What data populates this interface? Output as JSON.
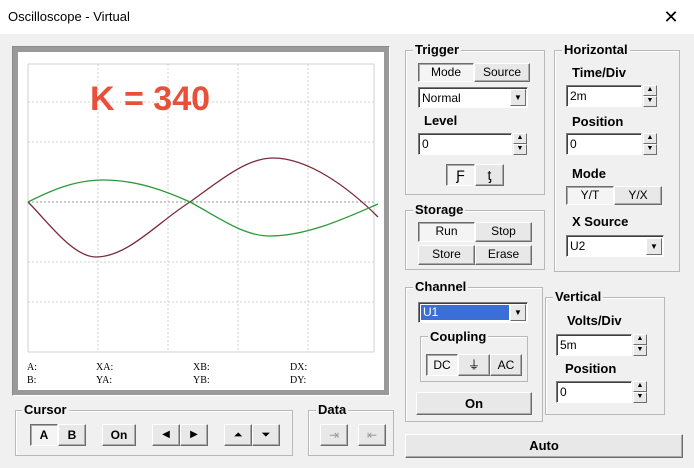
{
  "window": {
    "title": "Oscilloscope - Virtual"
  },
  "screen": {
    "overlay": "K = 340",
    "overlay_color": "#e8503a",
    "ch1_color": "#7a2a3a",
    "ch2_color": "#2a9a3a"
  },
  "readouts": {
    "a": "A:",
    "b": "B:",
    "xa": "XA:",
    "ya": "YA:",
    "xb": "XB:",
    "yb": "YB:",
    "dx": "DX:",
    "dy": "DY:"
  },
  "trigger": {
    "title": "Trigger",
    "mode_tab": "Mode",
    "source_tab": "Source",
    "mode_value": "Normal",
    "level_label": "Level",
    "level_value": "0",
    "rising": "Ƒ",
    "falling": "ƫ"
  },
  "horizontal": {
    "title": "Horizontal",
    "time_label": "Time/Div",
    "time_value": "2m",
    "position_label": "Position",
    "position_value": "0",
    "mode_label": "Mode",
    "yt": "Y/T",
    "yx": "Y/X",
    "xsource_label": "X Source",
    "xsource_value": "U2"
  },
  "storage": {
    "title": "Storage",
    "run": "Run",
    "stop": "Stop",
    "store": "Store",
    "erase": "Erase"
  },
  "channel": {
    "title": "Channel",
    "value": "U1",
    "coupling_label": "Coupling",
    "dc": "DC",
    "gnd": "⏚",
    "ac": "AC",
    "on": "On"
  },
  "vertical": {
    "title": "Vertical",
    "volts_label": "Volts/Div",
    "volts_value": "5m",
    "position_label": "Position",
    "position_value": "0"
  },
  "cursor": {
    "title": "Cursor",
    "a": "A",
    "b": "B",
    "on": "On",
    "left": "◀",
    "right": "▶",
    "up": "⏶",
    "down": "⏷"
  },
  "data": {
    "title": "Data",
    "import": "⇥",
    "export": "⇤"
  },
  "auto": "Auto"
}
